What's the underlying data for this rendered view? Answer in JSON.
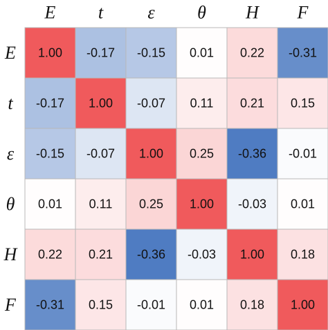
{
  "chart_data": {
    "type": "heatmap",
    "x_categories": [
      "E",
      "t",
      "ε",
      "θ",
      "H",
      "F"
    ],
    "y_categories": [
      "E",
      "t",
      "ε",
      "θ",
      "H",
      "F"
    ],
    "values": [
      [
        1.0,
        -0.17,
        -0.15,
        0.01,
        0.22,
        -0.31
      ],
      [
        -0.17,
        1.0,
        -0.07,
        0.11,
        0.21,
        0.15
      ],
      [
        -0.15,
        -0.07,
        1.0,
        0.25,
        -0.36,
        -0.01
      ],
      [
        0.01,
        0.11,
        0.25,
        1.0,
        -0.03,
        0.01
      ],
      [
        0.22,
        0.21,
        -0.36,
        -0.03,
        1.0,
        0.18
      ],
      [
        -0.31,
        0.15,
        -0.01,
        0.01,
        0.18,
        1.0
      ]
    ],
    "value_labels": [
      [
        "1.00",
        "-0.17",
        "-0.15",
        "0.01",
        "0.22",
        "-0.31"
      ],
      [
        "-0.17",
        "1.00",
        "-0.07",
        "0.11",
        "0.21",
        "0.15"
      ],
      [
        "-0.15",
        "-0.07",
        "1.00",
        "0.25",
        "-0.36",
        "-0.01"
      ],
      [
        "0.01",
        "0.11",
        "0.25",
        "1.00",
        "-0.03",
        "0.01"
      ],
      [
        "0.22",
        "0.21",
        "-0.36",
        "-0.03",
        "1.00",
        "0.18"
      ],
      [
        "-0.31",
        "0.15",
        "-0.01",
        "0.01",
        "0.18",
        "1.00"
      ]
    ],
    "colors": [
      "#4f7cc2",
      "#ffffff",
      "#f05a5c"
    ]
  }
}
